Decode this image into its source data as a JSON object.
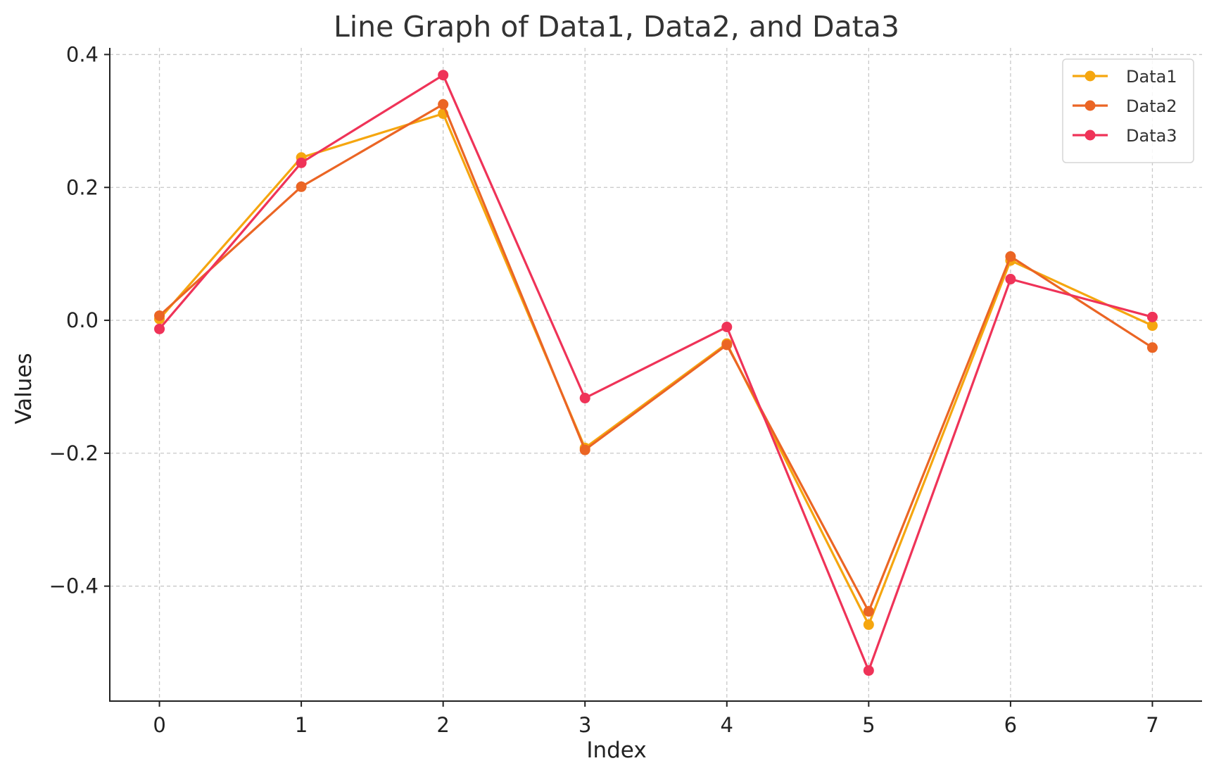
{
  "chart_data": {
    "type": "line",
    "title": "Line Graph of Data1, Data2, and Data3",
    "xlabel": "Index",
    "ylabel": "Values",
    "x": [
      0,
      1,
      2,
      3,
      4,
      5,
      6,
      7
    ],
    "xticks": [
      "0",
      "1",
      "2",
      "3",
      "4",
      "5",
      "6",
      "7"
    ],
    "yticks": [
      {
        "value": 0.4,
        "label": "0.4"
      },
      {
        "value": 0.2,
        "label": "0.2"
      },
      {
        "value": 0.0,
        "label": "0.0"
      },
      {
        "value": -0.2,
        "label": "−0.2"
      },
      {
        "value": -0.4,
        "label": "−0.4"
      }
    ],
    "xlim": [
      -0.35,
      7.35
    ],
    "ylim": [
      -0.573,
      0.41
    ],
    "grid": true,
    "legend_position": "top-right",
    "series": [
      {
        "name": "Data1",
        "color": "#F5A60F",
        "values": [
          0.002,
          0.245,
          0.311,
          -0.192,
          -0.035,
          -0.458,
          0.09,
          -0.008
        ]
      },
      {
        "name": "Data2",
        "color": "#EB6524",
        "values": [
          0.007,
          0.201,
          0.325,
          -0.195,
          -0.037,
          -0.438,
          0.096,
          -0.041
        ]
      },
      {
        "name": "Data3",
        "color": "#EF3358",
        "values": [
          -0.013,
          0.237,
          0.369,
          -0.117,
          -0.01,
          -0.527,
          0.062,
          0.005
        ]
      }
    ]
  }
}
